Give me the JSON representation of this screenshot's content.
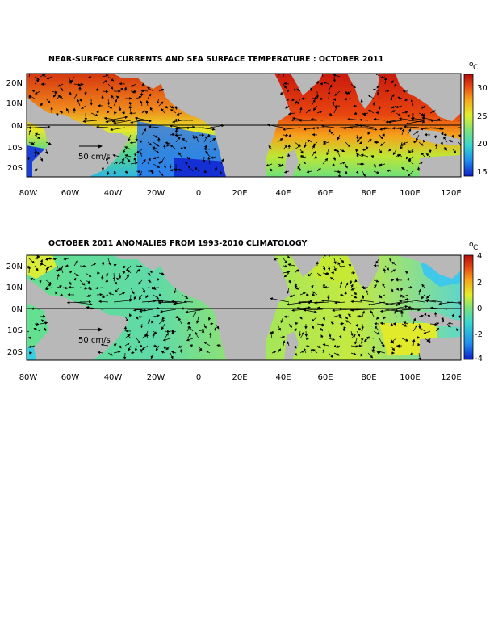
{
  "panels": [
    {
      "title": "NEAR-SURFACE CURRENTS AND SEA SURFACE TEMPERATURE : OCTOBER 2011",
      "y_ticks": [
        "20N",
        "10N",
        "0N",
        "10S",
        "20S"
      ],
      "x_ticks": [
        "80W",
        "60W",
        "40W",
        "20W",
        "0",
        "20E",
        "40E",
        "60E",
        "80E",
        "100E",
        "120E"
      ],
      "reference_vector": "50 cm/s",
      "colorbar": {
        "unit": "°C",
        "unit_degree": "o",
        "unit_letter": "C",
        "min": 14,
        "max": 32,
        "ticks": [
          "30",
          "25",
          "20",
          "15"
        ],
        "colors": [
          "#0b1fc8",
          "#1f8cf0",
          "#35d6d0",
          "#7ee37a",
          "#e4ee2a",
          "#f7a51b",
          "#e84a14",
          "#b40c0c"
        ]
      }
    },
    {
      "title": "OCTOBER 2011 ANOMALIES FROM 1993-2010 CLIMATOLOGY",
      "y_ticks": [
        "20N",
        "10N",
        "0N",
        "10S",
        "20S"
      ],
      "x_ticks": [
        "80W",
        "60W",
        "40W",
        "20W",
        "0",
        "20E",
        "40E",
        "60E",
        "80E",
        "100E",
        "120E"
      ],
      "reference_vector": "50 cm/s",
      "colorbar": {
        "unit": "°C",
        "unit_degree": "o",
        "unit_letter": "C",
        "min": -4,
        "max": 4,
        "ticks": [
          "4",
          "2",
          "0",
          "-2",
          "-4"
        ],
        "colors": [
          "#0b1fc8",
          "#1f8cf0",
          "#35d6d0",
          "#7ee37a",
          "#e4ee2a",
          "#f7a51b",
          "#e84a14",
          "#b40c0c"
        ]
      }
    }
  ],
  "colors": {
    "land": "#b8b8b8",
    "frame": "#000000",
    "background": "#ffffff"
  }
}
